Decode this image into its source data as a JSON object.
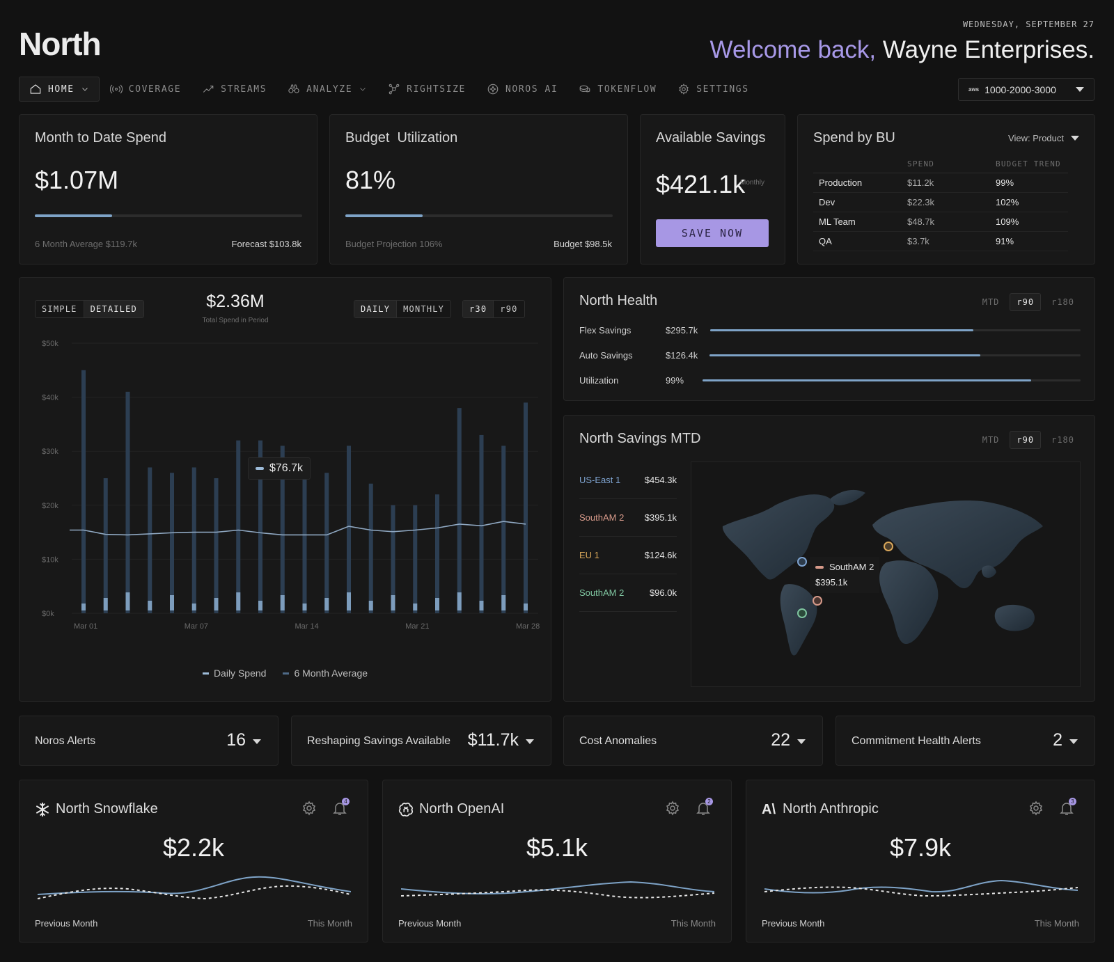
{
  "brand": "North",
  "header": {
    "date": "WEDNESDAY, SEPTEMBER 27",
    "welcome_prefix": "Welcome back,",
    "welcome_name": "Wayne Enterprises."
  },
  "nav": {
    "items": [
      {
        "label": "HOME",
        "icon": "home-icon"
      },
      {
        "label": "COVERAGE",
        "icon": "broadcast-icon"
      },
      {
        "label": "STREAMS",
        "icon": "trend-icon"
      },
      {
        "label": "ANALYZE",
        "icon": "binoculars-icon"
      },
      {
        "label": "RIGHTSIZE",
        "icon": "nodes-icon"
      },
      {
        "label": "NOROS AI",
        "icon": "ai-icon"
      },
      {
        "label": "TOKENFLOW",
        "icon": "coins-icon"
      },
      {
        "label": "SETTINGS",
        "icon": "gear-icon"
      }
    ],
    "account_provider": "aws",
    "account": "1000-2000-3000"
  },
  "mtd": {
    "title": "Month to Date Spend",
    "value": "$1.07M",
    "progress": 0.29,
    "footer_left": "6 Month Average $119.7k",
    "footer_right": "Forecast $103.8k"
  },
  "budget": {
    "title": "Budget  Utilization",
    "value": "81%",
    "progress": 0.29,
    "footer_left": "Budget Projection 106%",
    "footer_right": "Budget $98.5k"
  },
  "savings": {
    "title": "Available Savings",
    "value": "$421.1k",
    "unit": "Monthly",
    "button": "SAVE NOW"
  },
  "bu": {
    "title": "Spend by BU",
    "view": "View: Product",
    "headers": [
      "",
      "SPEND",
      "BUDGET TREND"
    ],
    "rows": [
      {
        "name": "Production",
        "spend": "$11.2k",
        "trend": "99%"
      },
      {
        "name": "Dev",
        "spend": "$22.3k",
        "trend": "102%"
      },
      {
        "name": "ML Team",
        "spend": "$48.7k",
        "trend": "109%"
      },
      {
        "name": "QA",
        "spend": "$3.7k",
        "trend": "91%"
      }
    ]
  },
  "spend_chart": {
    "view_toggle": [
      "SIMPLE",
      "DETAILED"
    ],
    "period_toggle": [
      "DAILY",
      "MONTHLY"
    ],
    "range_toggle": [
      "r30",
      "r90"
    ],
    "total": "$2.36M",
    "total_label": "Total Spend in Period",
    "tooltip": "$76.7k",
    "legend": [
      "Daily Spend",
      "6 Month Average"
    ]
  },
  "chart_data": {
    "type": "bar",
    "y_ticks": [
      "$50k",
      "$40k",
      "$30k",
      "$20k",
      "$10k",
      "$0k"
    ],
    "ylim": [
      0,
      50
    ],
    "x_ticks": [
      "Mar 01",
      "Mar 07",
      "Mar 14",
      "Mar 21",
      "Mar 28"
    ],
    "series": [
      {
        "name": "Daily Spend",
        "values": [
          45,
          25,
          41,
          27,
          26,
          27,
          25,
          32,
          32,
          31,
          26,
          26,
          31,
          24,
          20,
          20,
          22,
          38,
          33,
          31,
          39
        ]
      },
      {
        "name": "6 Month Average",
        "values": [
          15.4,
          14.6,
          14.5,
          14.7,
          14.9,
          15.0,
          15.0,
          15.4,
          14.9,
          14.5,
          14.5,
          14.5,
          16.1,
          15.4,
          15.1,
          15.4,
          15.8,
          16.5,
          16.2,
          17.0,
          16.5
        ]
      }
    ]
  },
  "health": {
    "title": "North Health",
    "tabs": [
      "MTD",
      "r90",
      "r180"
    ],
    "rows": [
      {
        "label": "Flex Savings",
        "value": "$295.7k",
        "progress": 0.71
      },
      {
        "label": "Auto Savings",
        "value": "$126.4k",
        "progress": 0.73
      },
      {
        "label": "Utilization",
        "value": "99%",
        "progress": 0.87
      }
    ]
  },
  "savings_mtd": {
    "title": "North Savings MTD",
    "tabs": [
      "MTD",
      "r90",
      "r180"
    ],
    "regions": [
      {
        "name": "US-East 1",
        "value": "$454.3k",
        "color": "#7ea3d0"
      },
      {
        "name": "SouthAM 2",
        "value": "$395.1k",
        "color": "#d79a8a"
      },
      {
        "name": "EU 1",
        "value": "$124.6k",
        "color": "#d9a75a"
      },
      {
        "name": "SouthAM 2",
        "value": "$96.0k",
        "color": "#7fc5a0"
      }
    ],
    "map_tooltip_name": "SouthAM 2",
    "map_tooltip_value": "$395.1k"
  },
  "alerts": [
    {
      "label": "Noros Alerts",
      "value": "16"
    },
    {
      "label": "Reshaping Savings Available",
      "value": "$11.7k"
    },
    {
      "label": "Cost Anomalies",
      "value": "22"
    },
    {
      "label": "Commitment Health Alerts",
      "value": "2"
    }
  ],
  "services": [
    {
      "name": "North Snowflake",
      "value": "$2.2k",
      "left": "Previous Month",
      "right": "This Month",
      "bell_count": "4"
    },
    {
      "name": "North OpenAI",
      "value": "$5.1k",
      "left": "Previous Month",
      "right": "This Month",
      "bell_count": "2"
    },
    {
      "name": "North Anthropic",
      "value": "$7.9k",
      "left": "Previous Month",
      "right": "This Month",
      "bell_count": "3"
    }
  ]
}
